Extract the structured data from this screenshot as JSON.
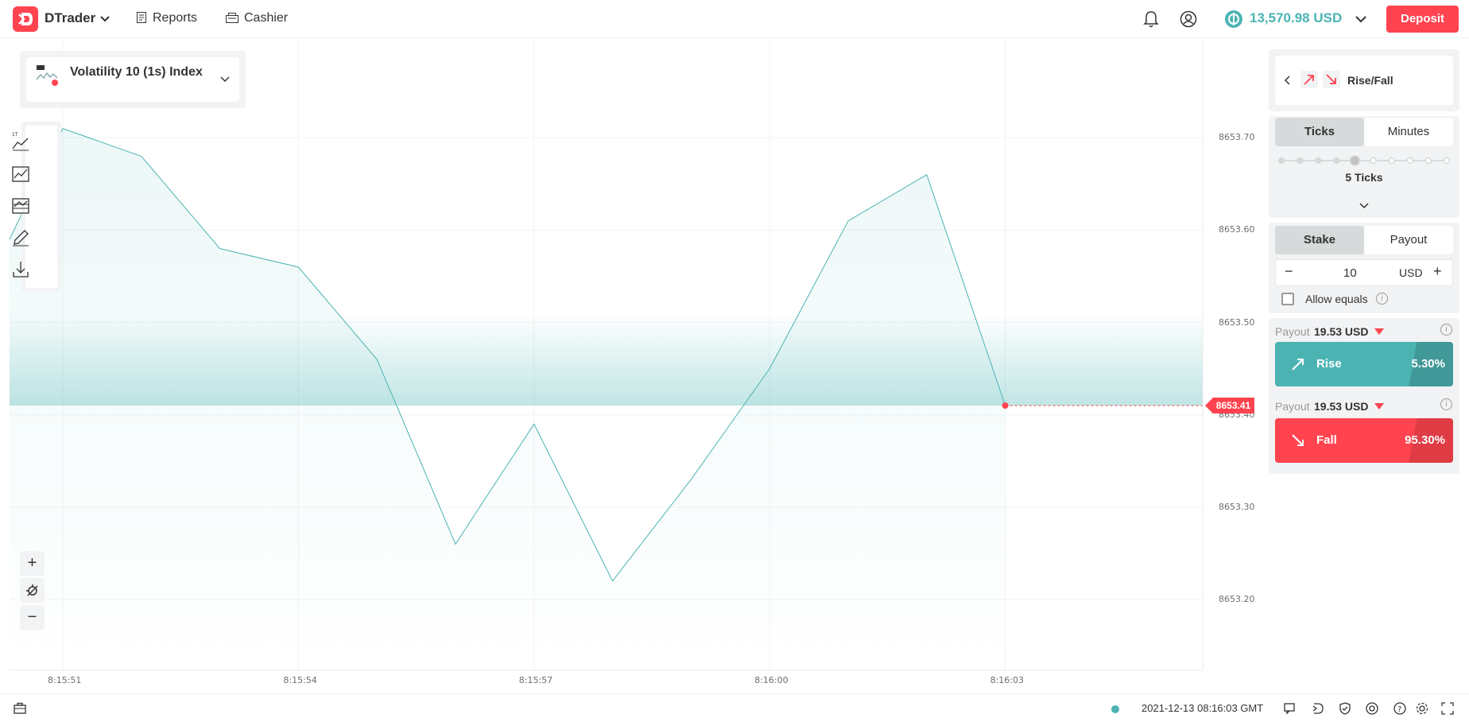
{
  "header": {
    "brand": "DTrader",
    "nav": [
      {
        "label": "Reports",
        "icon": "reports-icon"
      },
      {
        "label": "Cashier",
        "icon": "cashier-icon"
      }
    ],
    "balance": "13,570.98 USD",
    "deposit_label": "Deposit",
    "colors": {
      "brand_red": "#ff444f",
      "teal": "#4bb4b3"
    }
  },
  "chart": {
    "symbol": "Volatility 10 (1s) Index",
    "current_price": "8653.41",
    "zoom_in": "+",
    "zoom_out": "−"
  },
  "chart_data": {
    "type": "line",
    "x_labels": [
      "8:15:51",
      "8:15:54",
      "8:15:57",
      "8:16:00",
      "8:16:03"
    ],
    "y_labels": [
      "8653.70",
      "8653.60",
      "8653.50",
      "8653.40",
      "8653.30",
      "8653.20"
    ],
    "ylim": [
      8653.15,
      8653.77
    ],
    "points": [
      {
        "t": 50.3,
        "y": 8653.59
      },
      {
        "t": 51,
        "y": 8653.71
      },
      {
        "t": 52,
        "y": 8653.68
      },
      {
        "t": 53,
        "y": 8653.58
      },
      {
        "t": 54,
        "y": 8653.56
      },
      {
        "t": 55,
        "y": 8653.46
      },
      {
        "t": 56,
        "y": 8653.26
      },
      {
        "t": 57,
        "y": 8653.39
      },
      {
        "t": 58,
        "y": 8653.22
      },
      {
        "t": 59,
        "y": 8653.33
      },
      {
        "t": 60,
        "y": 8653.45
      },
      {
        "t": 61,
        "y": 8653.61
      },
      {
        "t": 62,
        "y": 8653.66
      },
      {
        "t": 63,
        "y": 8653.41
      }
    ],
    "barrier": 8653.41,
    "grid": true
  },
  "trade": {
    "trade_type": "Rise/Fall",
    "duration_tabs": [
      "Ticks",
      "Minutes"
    ],
    "duration_label": "5 Ticks",
    "duration_ticks": 5,
    "duration_max": 10,
    "amount_tabs": [
      "Stake",
      "Payout"
    ],
    "stake_value": "10",
    "currency": "USD",
    "stake_minus": "−",
    "stake_plus": "+",
    "allow_equals": "Allow equals",
    "rise": {
      "payout_label": "Payout",
      "payout": "19.53 USD",
      "label": "Rise",
      "percent": "5.30%"
    },
    "fall": {
      "payout_label": "Payout",
      "payout": "19.53 USD",
      "label": "Fall",
      "percent": "95.30%"
    }
  },
  "footer": {
    "datetime": "2021-12-13 08:16:03 GMT"
  }
}
